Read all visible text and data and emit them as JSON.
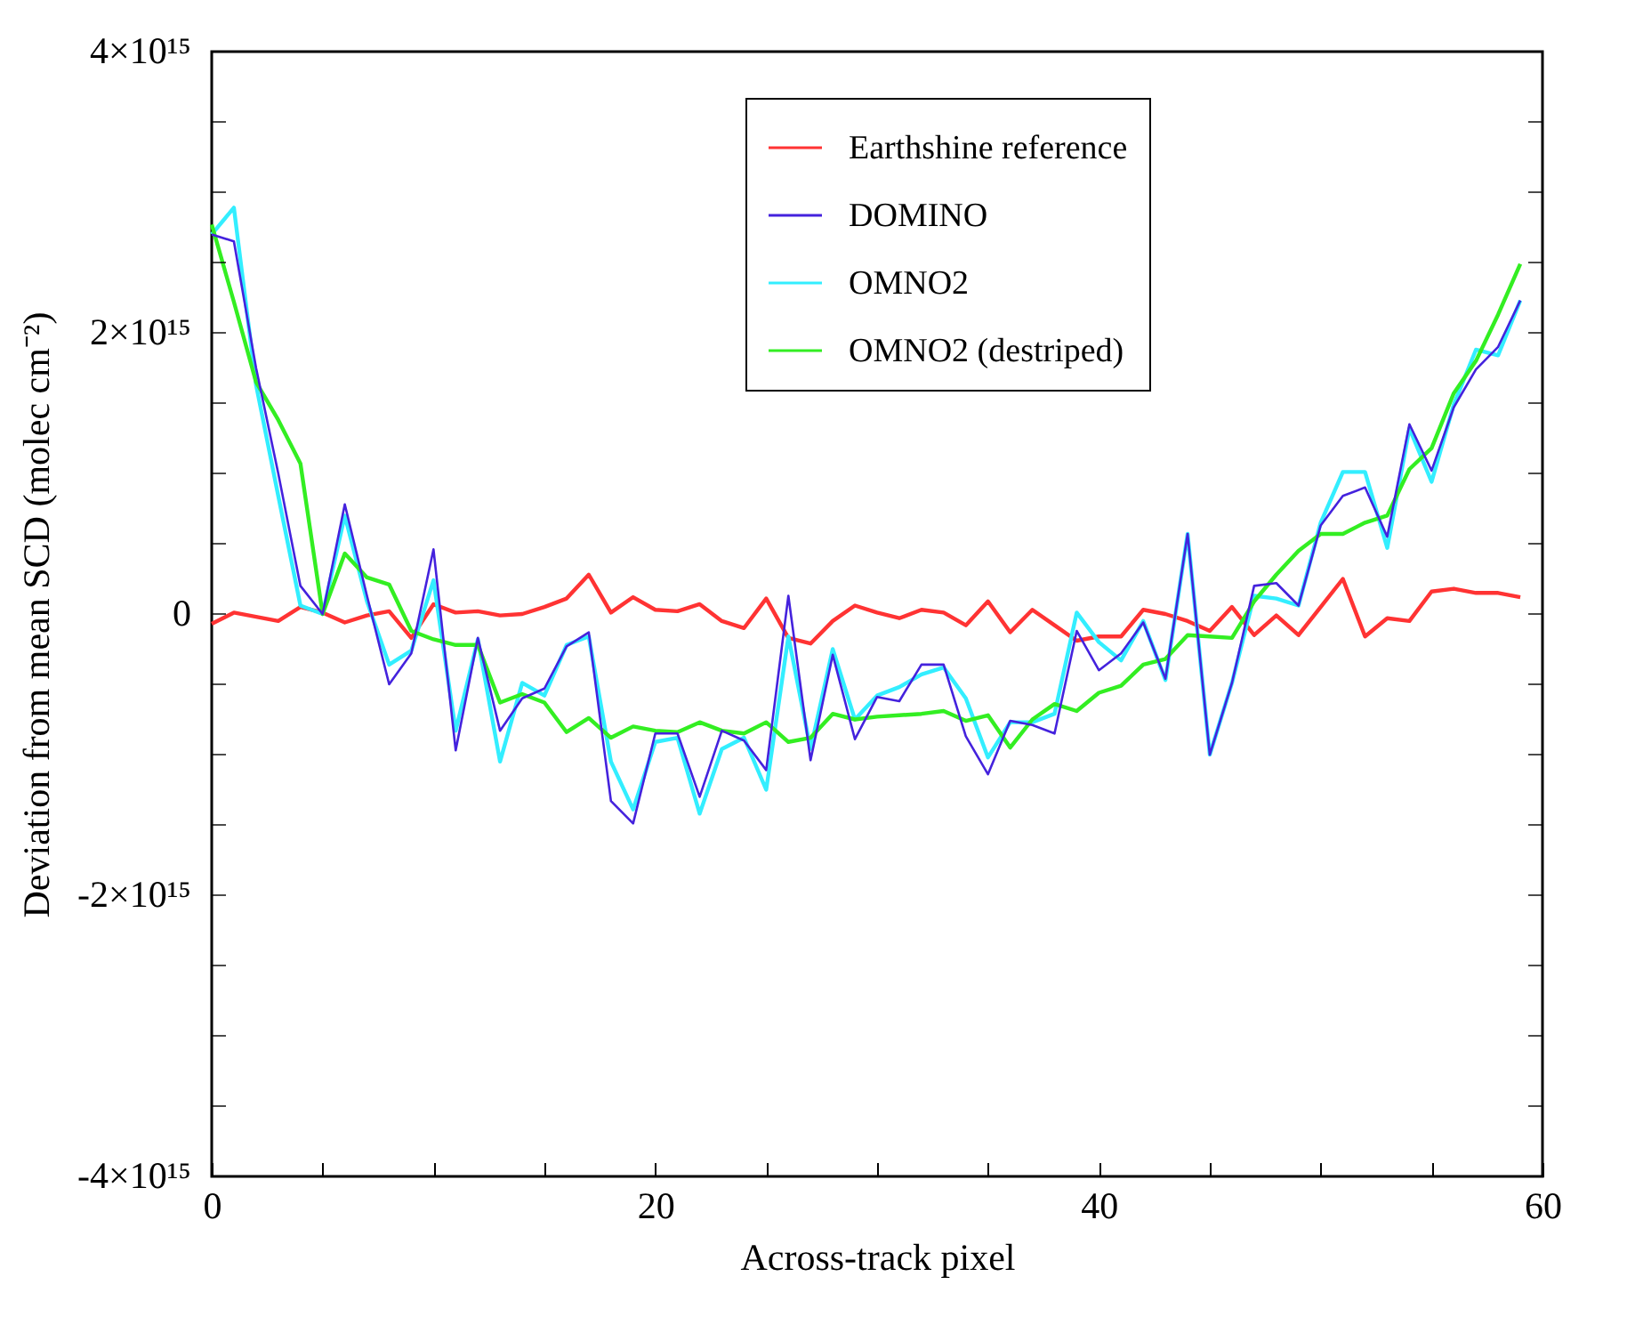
{
  "chart_data": {
    "type": "line",
    "xlabel": "Across-track pixel",
    "ylabel": "Deviation from mean SCD (molec cm⁻²)",
    "x": [
      0,
      1,
      2,
      3,
      4,
      5,
      6,
      7,
      8,
      9,
      10,
      11,
      12,
      13,
      14,
      15,
      16,
      17,
      18,
      19,
      20,
      21,
      22,
      23,
      24,
      25,
      26,
      27,
      28,
      29,
      30,
      31,
      32,
      33,
      34,
      35,
      36,
      37,
      38,
      39,
      40,
      41,
      42,
      43,
      44,
      45,
      46,
      47,
      48,
      49,
      50,
      51,
      52,
      53,
      54,
      55,
      56,
      57,
      58,
      59
    ],
    "xlim": [
      0,
      60
    ],
    "xticks": [
      0,
      {
        "value": 5,
        "label": null
      },
      {
        "value": 10,
        "label": null
      },
      {
        "value": 15,
        "label": null
      },
      20,
      {
        "value": 25,
        "label": null
      },
      {
        "value": 30,
        "label": null
      },
      {
        "value": 35,
        "label": null
      },
      40,
      {
        "value": 45,
        "label": null
      },
      {
        "value": 50,
        "label": null
      },
      {
        "value": 55,
        "label": null
      },
      60
    ],
    "ylim": [
      -4000000000000000.0,
      4000000000000000.0
    ],
    "yticks": [
      {
        "value": -4000000000000000.0,
        "label": "-4×10¹⁵"
      },
      {
        "value": -3500000000000000.0,
        "label": null
      },
      {
        "value": -3000000000000000.0,
        "label": null
      },
      {
        "value": -2500000000000000.0,
        "label": null
      },
      {
        "value": -2000000000000000.0,
        "label": "-2×10¹⁵"
      },
      {
        "value": -1500000000000000.0,
        "label": null
      },
      {
        "value": -1000000000000000.0,
        "label": null
      },
      {
        "value": -500000000000000.0,
        "label": null
      },
      {
        "value": 0,
        "label": "0"
      },
      {
        "value": 500000000000000.0,
        "label": null
      },
      {
        "value": 1000000000000000.0,
        "label": null
      },
      {
        "value": 1500000000000000.0,
        "label": null
      },
      {
        "value": 2000000000000000.0,
        "label": "2×10¹⁵"
      },
      {
        "value": 2500000000000000.0,
        "label": null
      },
      {
        "value": 3000000000000000.0,
        "label": null
      },
      {
        "value": 3500000000000000.0,
        "label": null
      },
      {
        "value": 4000000000000000.0,
        "label": "4×10¹⁵"
      }
    ],
    "legend": "top right",
    "marker": "none",
    "line_style": "solid",
    "series": [
      {
        "name": "Earthshine reference",
        "color": "#ff3333",
        "values": [
          -70000000000000.0,
          10000000000000.0,
          -20000000000000.0,
          -50000000000000.0,
          50000000000000.0,
          10000000000000.0,
          -60000000000000.0,
          -10000000000000.0,
          20000000000000.0,
          -170000000000000.0,
          70000000000000.0,
          10000000000000.0,
          20000000000000.0,
          -10000000000000.0,
          0,
          50000000000000.0,
          110000000000000.0,
          280000000000000.0,
          10000000000000.0,
          120000000000000.0,
          30000000000000.0,
          20000000000000.0,
          70000000000000.0,
          -50000000000000.0,
          -100000000000000.0,
          110000000000000.0,
          -170000000000000.0,
          -210000000000000.0,
          -50000000000000.0,
          60000000000000.0,
          10000000000000.0,
          -30000000000000.0,
          30000000000000.0,
          10000000000000.0,
          -80000000000000.0,
          90000000000000.0,
          -130000000000000.0,
          30000000000000.0,
          -80000000000000.0,
          -190000000000000.0,
          -160000000000000.0,
          -160000000000000.0,
          30000000000000.0,
          0,
          -50000000000000.0,
          -120000000000000.0,
          50000000000000.0,
          -150000000000000.0,
          -10000000000000.0,
          -150000000000000.0,
          50000000000000.0,
          250000000000000.0,
          -160000000000000.0,
          -30000000000000.0,
          -50000000000000.0,
          160000000000000.0,
          180000000000000.0,
          150000000000000.0,
          150000000000000.0,
          120000000000000.0
        ]
      },
      {
        "name": "DOMINO",
        "color": "#4422dd",
        "values": [
          2700000000000000.0,
          2650000000000000.0,
          1750000000000000.0,
          1000000000000000.0,
          200000000000000.0,
          0,
          780000000000000.0,
          130000000000000.0,
          -500000000000000.0,
          -280000000000000.0,
          460000000000000.0,
          -970000000000000.0,
          -170000000000000.0,
          -830000000000000.0,
          -600000000000000.0,
          -530000000000000.0,
          -230000000000000.0,
          -130000000000000.0,
          -1330000000000000.0,
          -1490000000000000.0,
          -850000000000000.0,
          -850000000000000.0,
          -1300000000000000.0,
          -830000000000000.0,
          -900000000000000.0,
          -1110000000000000.0,
          130000000000000.0,
          -1040000000000000.0,
          -290000000000000.0,
          -890000000000000.0,
          -590000000000000.0,
          -620000000000000.0,
          -360000000000000.0,
          -360000000000000.0,
          -870000000000000.0,
          -1140000000000000.0,
          -760000000000000.0,
          -790000000000000.0,
          -850000000000000.0,
          -120000000000000.0,
          -400000000000000.0,
          -280000000000000.0,
          -60000000000000.0,
          -460000000000000.0,
          570000000000000.0,
          -1000000000000000.0,
          -490000000000000.0,
          200000000000000.0,
          220000000000000.0,
          60000000000000.0,
          630000000000000.0,
          840000000000000.0,
          900000000000000.0,
          550000000000000.0,
          1350000000000000.0,
          1020000000000000.0,
          1470000000000000.0,
          1740000000000000.0,
          1900000000000000.0,
          2230000000000000.0
        ]
      },
      {
        "name": "OMNO2",
        "color": "#33eeff",
        "values": [
          2700000000000000.0,
          2890000000000000.0,
          1630000000000000.0,
          840000000000000.0,
          60000000000000.0,
          0,
          700000000000000.0,
          90000000000000.0,
          -360000000000000.0,
          -260000000000000.0,
          240000000000000.0,
          -830000000000000.0,
          -180000000000000.0,
          -1050000000000000.0,
          -490000000000000.0,
          -580000000000000.0,
          -220000000000000.0,
          -160000000000000.0,
          -1050000000000000.0,
          -1390000000000000.0,
          -910000000000000.0,
          -880000000000000.0,
          -1420000000000000.0,
          -960000000000000.0,
          -880000000000000.0,
          -1250000000000000.0,
          -160000000000000.0,
          -960000000000000.0,
          -250000000000000.0,
          -750000000000000.0,
          -580000000000000.0,
          -520000000000000.0,
          -430000000000000.0,
          -380000000000000.0,
          -600000000000000.0,
          -1020000000000000.0,
          -770000000000000.0,
          -770000000000000.0,
          -710000000000000.0,
          10000000000000.0,
          -200000000000000.0,
          -330000000000000.0,
          -50000000000000.0,
          -470000000000000.0,
          570000000000000.0,
          -1000000000000000.0,
          -490000000000000.0,
          130000000000000.0,
          110000000000000.0,
          60000000000000.0,
          650000000000000.0,
          1010000000000000.0,
          1010000000000000.0,
          470000000000000.0,
          1320000000000000.0,
          940000000000000.0,
          1490000000000000.0,
          1880000000000000.0,
          1840000000000000.0,
          2230000000000000.0
        ]
      },
      {
        "name": "OMNO2 (destriped)",
        "color": "#33ee22",
        "values": [
          2770000000000000.0,
          2220000000000000.0,
          1650000000000000.0,
          1380000000000000.0,
          1070000000000000.0,
          0,
          430000000000000.0,
          260000000000000.0,
          210000000000000.0,
          -120000000000000.0,
          -180000000000000.0,
          -220000000000000.0,
          -220000000000000.0,
          -630000000000000.0,
          -570000000000000.0,
          -630000000000000.0,
          -840000000000000.0,
          -740000000000000.0,
          -880000000000000.0,
          -800000000000000.0,
          -830000000000000.0,
          -840000000000000.0,
          -770000000000000.0,
          -830000000000000.0,
          -850000000000000.0,
          -770000000000000.0,
          -910000000000000.0,
          -880000000000000.0,
          -710000000000000.0,
          -750000000000000.0,
          -730000000000000.0,
          -720000000000000.0,
          -710000000000000.0,
          -690000000000000.0,
          -760000000000000.0,
          -720000000000000.0,
          -950000000000000.0,
          -750000000000000.0,
          -640000000000000.0,
          -690000000000000.0,
          -560000000000000.0,
          -510000000000000.0,
          -360000000000000.0,
          -320000000000000.0,
          -150000000000000.0,
          -160000000000000.0,
          -170000000000000.0,
          90000000000000.0,
          280000000000000.0,
          450000000000000.0,
          570000000000000.0,
          570000000000000.0,
          650000000000000.0,
          700000000000000.0,
          1030000000000000.0,
          1180000000000000.0,
          1570000000000000.0,
          1800000000000000.0,
          2130000000000000.0,
          2490000000000000.0
        ]
      }
    ]
  }
}
